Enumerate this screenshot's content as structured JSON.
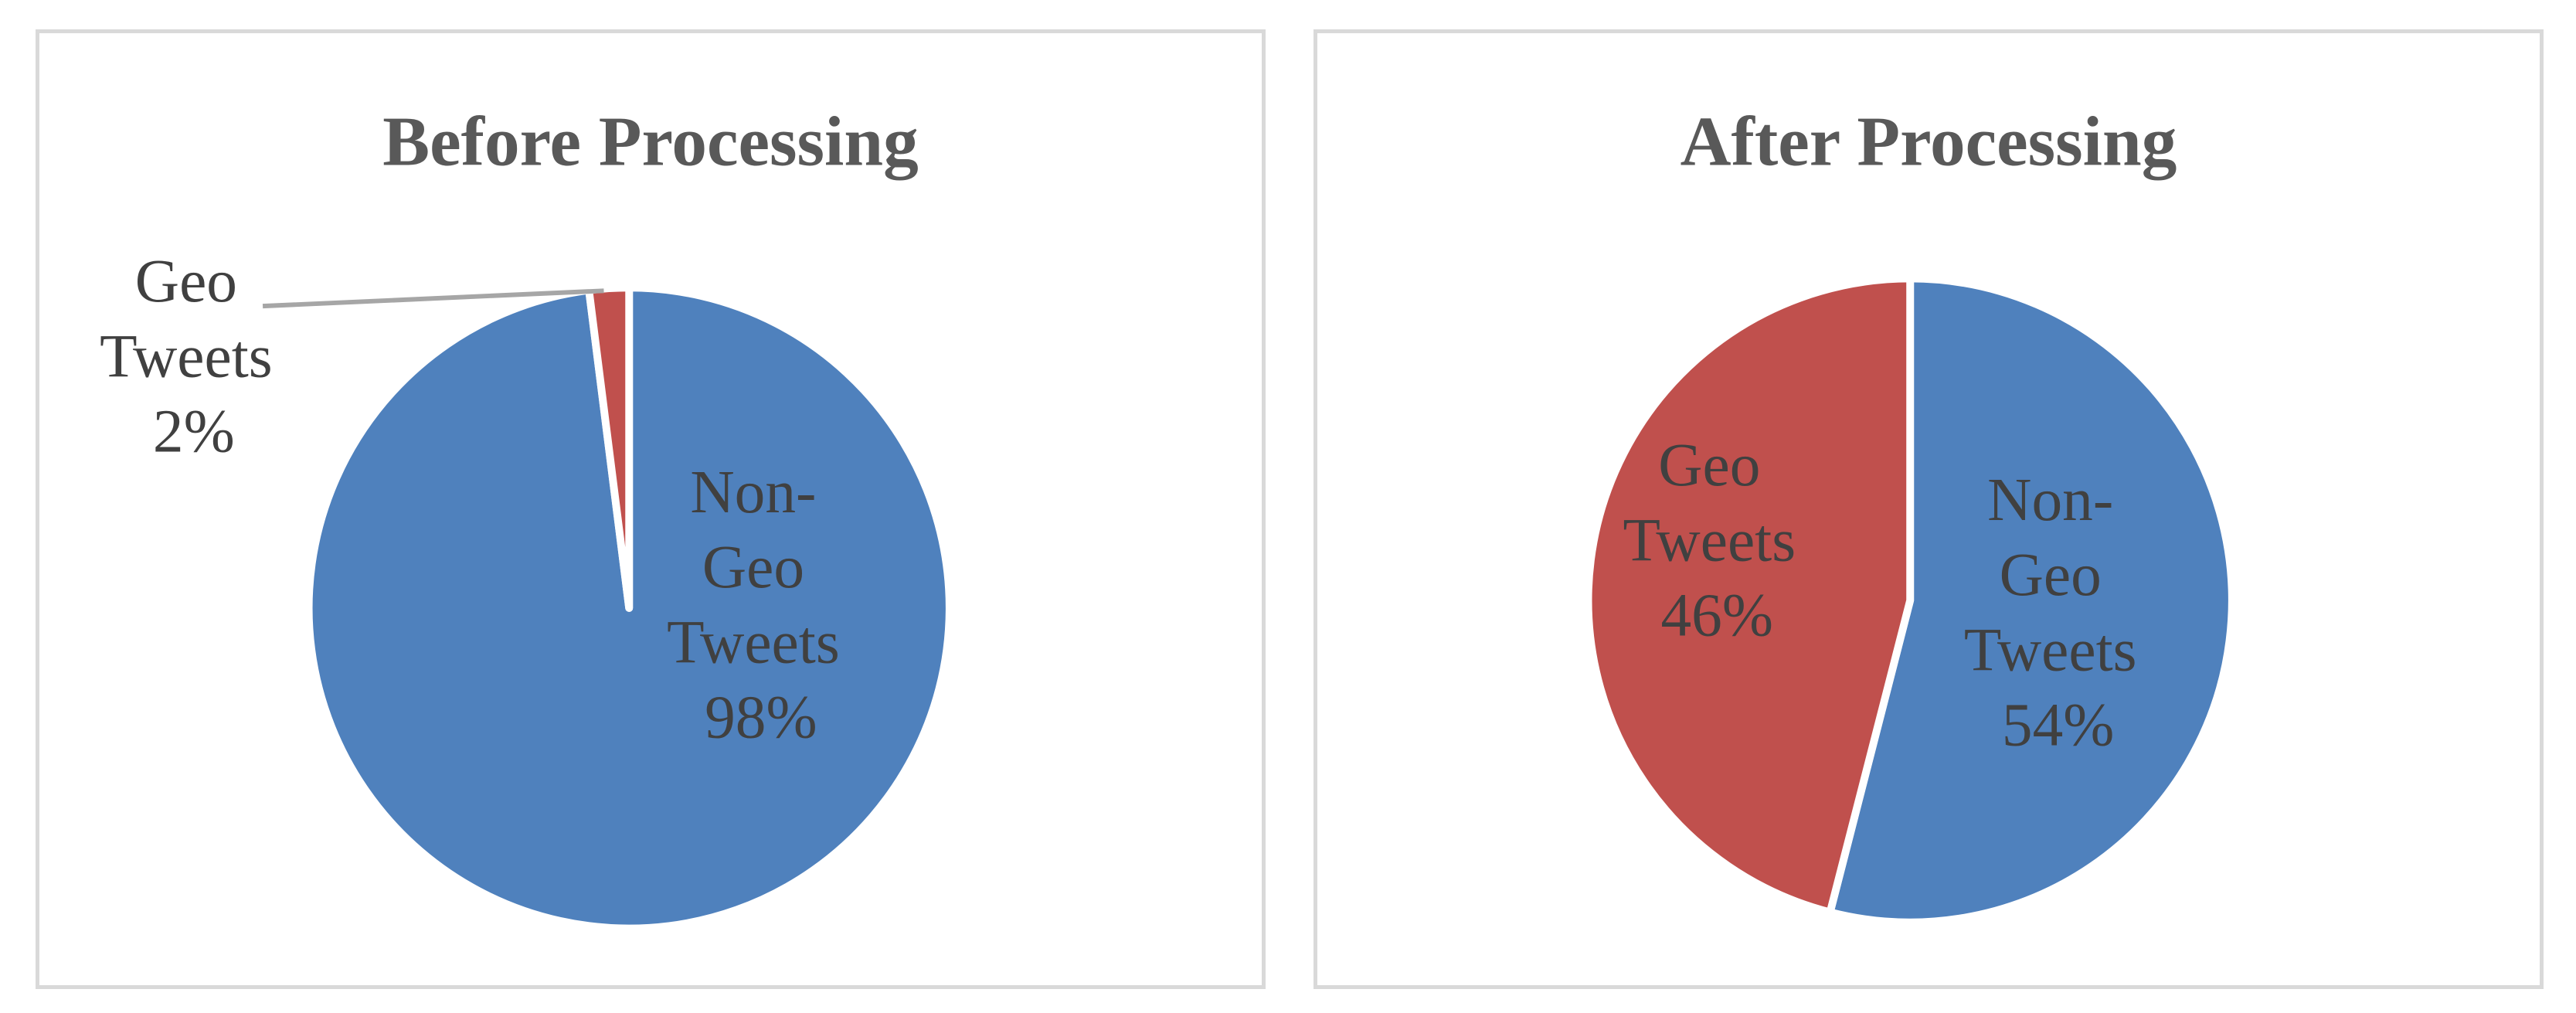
{
  "chart_data": [
    {
      "type": "pie",
      "title": "Before Processing",
      "categories": [
        "Non-Geo Tweets",
        "Geo Tweets"
      ],
      "values": [
        98,
        2
      ],
      "colors": [
        "#4f81bd",
        "#c0504d"
      ],
      "labels": [
        {
          "lines": [
            "Non-",
            "Geo",
            "Tweets",
            "98%"
          ]
        },
        {
          "lines": [
            "Geo",
            "Tweets",
            "2%"
          ]
        }
      ]
    },
    {
      "type": "pie",
      "title": "After Processing",
      "categories": [
        "Non-Geo Tweets",
        "Geo Tweets"
      ],
      "values": [
        54,
        46
      ],
      "colors": [
        "#4f81bd",
        "#c0504d"
      ],
      "labels": [
        {
          "lines": [
            "Non-",
            "Geo",
            "Tweets",
            "54%"
          ]
        },
        {
          "lines": [
            "Geo",
            "Tweets",
            "46%"
          ]
        }
      ]
    }
  ]
}
